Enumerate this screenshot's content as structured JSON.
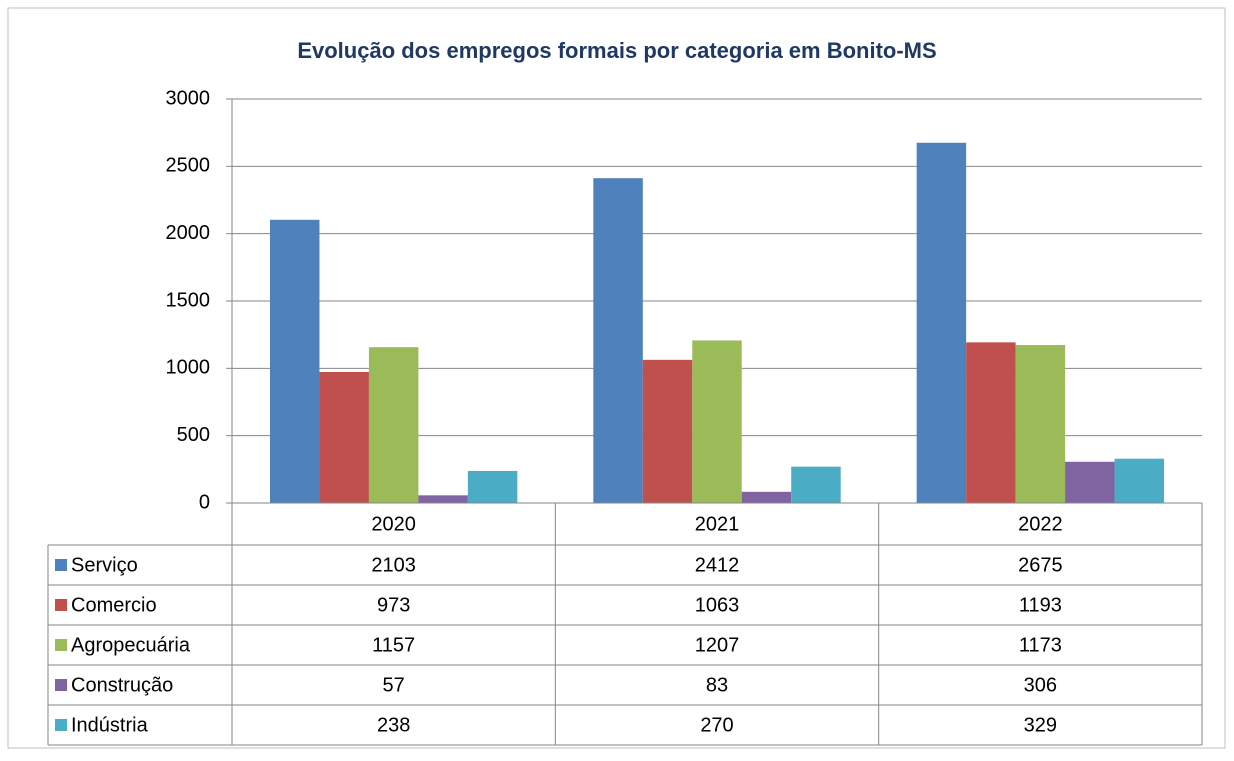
{
  "chart_data": {
    "type": "bar",
    "title": "Evolução dos empregos formais por categoria em Bonito-MS",
    "categories": [
      "2020",
      "2021",
      "2022"
    ],
    "series": [
      {
        "name": "Serviço",
        "color": "#4f81bd",
        "values": [
          2103,
          2412,
          2675
        ]
      },
      {
        "name": "Comercio",
        "color": "#c0504d",
        "values": [
          973,
          1063,
          1193
        ]
      },
      {
        "name": "Agropecuária",
        "color": "#9bbb59",
        "values": [
          1157,
          1207,
          1173
        ]
      },
      {
        "name": "Construção",
        "color": "#8064a2",
        "values": [
          57,
          83,
          306
        ]
      },
      {
        "name": "Indústria",
        "color": "#4bacc6",
        "values": [
          238,
          270,
          329
        ]
      }
    ],
    "ylim": [
      0,
      3000
    ],
    "yticks": [
      0,
      500,
      1000,
      1500,
      2000,
      2500,
      3000
    ],
    "grid": true
  }
}
